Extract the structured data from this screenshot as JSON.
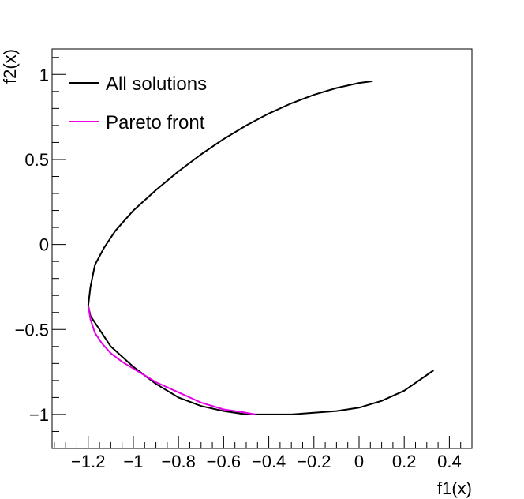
{
  "chart_data": {
    "type": "line",
    "title": "",
    "xlabel": "f1(x)",
    "ylabel": "f2(x)",
    "xlim": [
      -1.36,
      0.5
    ],
    "ylim": [
      -1.2,
      1.15
    ],
    "x_ticks": [
      -1.2,
      -1.0,
      -0.8,
      -0.6,
      -0.4,
      -0.2,
      0,
      0.2,
      0.4
    ],
    "x_tick_labels": [
      "−1.2",
      "−1",
      "−0.8",
      "−0.6",
      "−0.4",
      "−0.2",
      "0",
      "0.2",
      "0.4"
    ],
    "y_ticks": [
      -1,
      -0.5,
      0,
      0.5,
      1
    ],
    "y_tick_labels": [
      "−1",
      "−0.5",
      "0",
      "0.5",
      "1"
    ],
    "grid": false,
    "legend": {
      "placement": "top-left"
    },
    "series": [
      {
        "name": "All solutions",
        "color": "#000000",
        "x": [
          0.33,
          0.2,
          0.1,
          0.0,
          -0.1,
          -0.2,
          -0.3,
          -0.4,
          -0.46,
          -0.5,
          -0.6,
          -0.7,
          -0.8,
          -0.9,
          -1.0,
          -1.1,
          -1.15,
          -1.19,
          -1.2,
          -1.19,
          -1.17,
          -1.13,
          -1.08,
          -1.0,
          -0.9,
          -0.8,
          -0.7,
          -0.6,
          -0.5,
          -0.4,
          -0.3,
          -0.2,
          -0.1,
          0.0,
          0.06
        ],
        "y": [
          -0.74,
          -0.86,
          -0.92,
          -0.96,
          -0.98,
          -0.99,
          -1.0,
          -1.0,
          -1.0,
          -1.0,
          -0.98,
          -0.95,
          -0.9,
          -0.82,
          -0.72,
          -0.6,
          -0.5,
          -0.42,
          -0.36,
          -0.25,
          -0.12,
          -0.02,
          0.08,
          0.2,
          0.32,
          0.43,
          0.53,
          0.62,
          0.7,
          0.77,
          0.83,
          0.88,
          0.92,
          0.95,
          0.96
        ]
      },
      {
        "name": "Pareto front",
        "color": "#e600e6",
        "x": [
          -1.2,
          -1.19,
          -1.17,
          -1.14,
          -1.1,
          -1.05,
          -1.0,
          -0.95,
          -0.9,
          -0.85,
          -0.8,
          -0.75,
          -0.7,
          -0.65,
          -0.6,
          -0.55,
          -0.5,
          -0.46
        ],
        "y": [
          -0.36,
          -0.44,
          -0.52,
          -0.58,
          -0.64,
          -0.69,
          -0.73,
          -0.77,
          -0.81,
          -0.84,
          -0.87,
          -0.9,
          -0.93,
          -0.95,
          -0.97,
          -0.98,
          -0.99,
          -1.0
        ]
      }
    ]
  }
}
